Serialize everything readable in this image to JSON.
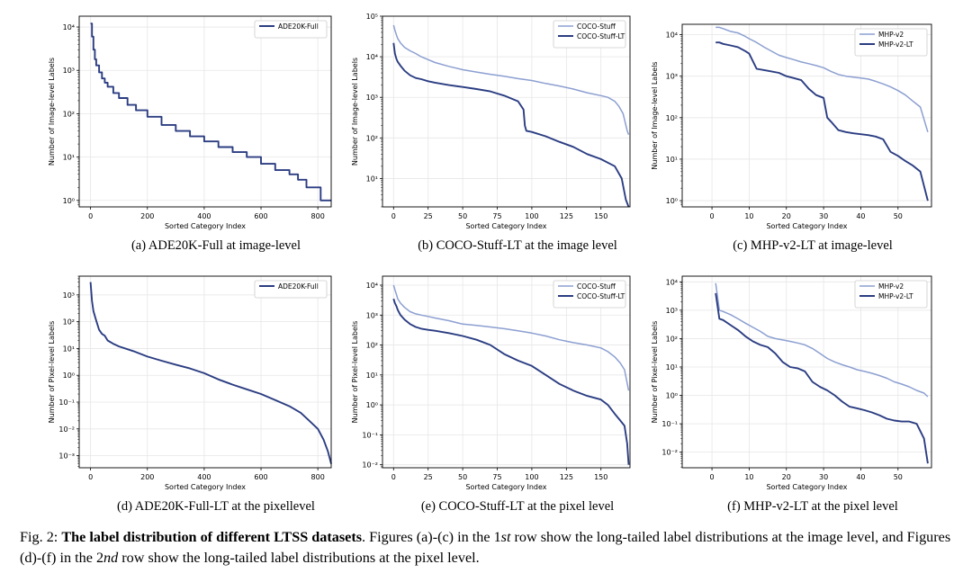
{
  "colors": {
    "light": "#8c9fd1",
    "dark": "#2b3d82",
    "grid": "#e6e6e6",
    "axis": "#000000"
  },
  "chart_data": [
    {
      "id": "a",
      "type": "line",
      "yscale": "log",
      "caption": "(a) ADE20K-Full at image-level",
      "xlabel": "Sorted Category Index",
      "ylabel": "Number of Image-level Labels",
      "xlim": [
        -40,
        847
      ],
      "ylim_exp": [
        -0.15,
        4.25
      ],
      "xticks": [
        0,
        200,
        400,
        600,
        800
      ],
      "yticks_exp": [
        0,
        1,
        2,
        3,
        4
      ],
      "legend": "top-right",
      "grid": true,
      "series": [
        {
          "name": "ADE20K-Full",
          "color": "dark",
          "step": true,
          "x": [
            0,
            5,
            10,
            15,
            20,
            30,
            40,
            50,
            60,
            80,
            100,
            130,
            160,
            200,
            250,
            300,
            350,
            400,
            450,
            500,
            550,
            600,
            650,
            700,
            730,
            760,
            790,
            810,
            847
          ],
          "y": [
            12000,
            6000,
            3000,
            1800,
            1300,
            900,
            650,
            520,
            420,
            300,
            230,
            160,
            120,
            85,
            55,
            40,
            30,
            23,
            17,
            13,
            10,
            7,
            5,
            4,
            3,
            2,
            2,
            1,
            1
          ]
        }
      ]
    },
    {
      "id": "b",
      "type": "line",
      "yscale": "log",
      "caption": "(b) COCO-Stuff-LT at the image level",
      "xlabel": "Sorted Category Index",
      "ylabel": "Number of Image-level Labels",
      "xlim": [
        -8,
        171
      ],
      "ylim_exp": [
        0.3,
        5
      ],
      "xticks": [
        0,
        25,
        50,
        75,
        100,
        125,
        150
      ],
      "yticks_exp": [
        1,
        2,
        3,
        4,
        5
      ],
      "legend": "top-right",
      "grid": true,
      "series": [
        {
          "name": "COCO-Stuff",
          "color": "light",
          "x": [
            0,
            1,
            2,
            3,
            5,
            8,
            12,
            16,
            20,
            25,
            30,
            40,
            50,
            60,
            70,
            80,
            90,
            100,
            110,
            120,
            130,
            140,
            150,
            155,
            160,
            163,
            166,
            169,
            170
          ],
          "y": [
            60000,
            45000,
            35000,
            28000,
            22000,
            17000,
            14000,
            12000,
            10000,
            8500,
            7200,
            5800,
            4800,
            4200,
            3700,
            3300,
            2900,
            2600,
            2200,
            1900,
            1600,
            1300,
            1100,
            1000,
            800,
            600,
            400,
            150,
            120
          ]
        },
        {
          "name": "COCO-Stuff-LT",
          "color": "dark",
          "x": [
            0,
            1,
            2,
            3,
            5,
            8,
            12,
            16,
            20,
            25,
            30,
            40,
            50,
            60,
            70,
            80,
            90,
            94,
            95,
            96,
            100,
            110,
            120,
            130,
            140,
            150,
            160,
            165,
            168,
            170
          ],
          "y": [
            22000,
            12000,
            9000,
            7500,
            6000,
            4500,
            3500,
            3000,
            2800,
            2500,
            2300,
            2000,
            1800,
            1600,
            1400,
            1100,
            800,
            500,
            200,
            150,
            140,
            110,
            80,
            60,
            40,
            30,
            20,
            10,
            3,
            2
          ]
        }
      ]
    },
    {
      "id": "c",
      "type": "line",
      "yscale": "log",
      "caption": "(c) MHP-v2-LT at image-level",
      "xlabel": "Sorted Category Index",
      "ylabel": "Number of Image-level Labels",
      "xlim": [
        -8,
        59
      ],
      "ylim_exp": [
        -0.15,
        4.25
      ],
      "xticks": [
        0,
        10,
        20,
        30,
        40,
        50
      ],
      "yticks_exp": [
        0,
        1,
        2,
        3,
        4
      ],
      "legend": "top-right",
      "grid": true,
      "series": [
        {
          "name": "MHP-v2",
          "color": "light",
          "x": [
            1,
            2,
            3,
            5,
            7,
            9,
            10,
            12,
            14,
            16,
            18,
            20,
            22,
            24,
            26,
            28,
            30,
            32,
            34,
            36,
            38,
            40,
            42,
            44,
            46,
            48,
            50,
            52,
            54,
            56,
            58
          ],
          "y": [
            15000,
            15000,
            14000,
            12000,
            11000,
            9000,
            8000,
            6500,
            5000,
            4000,
            3200,
            2800,
            2500,
            2200,
            2000,
            1800,
            1600,
            1300,
            1100,
            1000,
            950,
            900,
            850,
            750,
            650,
            550,
            450,
            350,
            250,
            180,
            45
          ]
        },
        {
          "name": "MHP-v2-LT",
          "color": "dark",
          "x": [
            1,
            2,
            3,
            5,
            7,
            9,
            10,
            12,
            14,
            16,
            18,
            20,
            22,
            24,
            26,
            28,
            30,
            31,
            32,
            34,
            36,
            38,
            40,
            42,
            44,
            46,
            48,
            50,
            52,
            54,
            56,
            58
          ],
          "y": [
            6500,
            6500,
            6000,
            5500,
            5000,
            4000,
            3500,
            1500,
            1400,
            1300,
            1200,
            1000,
            900,
            800,
            500,
            350,
            300,
            100,
            80,
            50,
            45,
            42,
            40,
            38,
            35,
            30,
            15,
            12,
            9,
            7,
            5,
            1
          ]
        }
      ]
    },
    {
      "id": "d",
      "type": "line",
      "yscale": "log",
      "caption": "(d) ADE20K-Full-LT at the pixellevel",
      "xlabel": "Sorted Category Index",
      "ylabel": "Number of Pixel-level Labels",
      "xlim": [
        -40,
        847
      ],
      "ylim_exp": [
        -3.45,
        3.7
      ],
      "xticks": [
        0,
        200,
        400,
        600,
        800
      ],
      "yticks_exp": [
        -3,
        -2,
        -1,
        0,
        1,
        2,
        3
      ],
      "legend": "top-right",
      "grid": true,
      "series": [
        {
          "name": "ADE20K-Full",
          "color": "dark",
          "x": [
            0,
            5,
            10,
            20,
            30,
            40,
            50,
            60,
            80,
            100,
            150,
            200,
            250,
            300,
            350,
            400,
            450,
            500,
            550,
            600,
            650,
            700,
            740,
            770,
            800,
            820,
            835,
            847
          ],
          "y": [
            3000,
            600,
            250,
            110,
            50,
            35,
            30,
            20,
            15,
            12,
            8,
            5,
            3.5,
            2.5,
            1.8,
            1.2,
            0.7,
            0.45,
            0.3,
            0.2,
            0.12,
            0.07,
            0.04,
            0.02,
            0.01,
            0.004,
            0.0015,
            0.0005
          ]
        }
      ]
    },
    {
      "id": "e",
      "type": "line",
      "yscale": "log",
      "caption": "(e) COCO-Stuff-LT at the pixel level",
      "xlabel": "Sorted Category Index",
      "ylabel": "Number of Pixel-level Labels",
      "xlim": [
        -8,
        171
      ],
      "ylim_exp": [
        -2.1,
        4.3
      ],
      "xticks": [
        0,
        25,
        50,
        75,
        100,
        125,
        150
      ],
      "yticks_exp": [
        -2,
        -1,
        0,
        1,
        2,
        3,
        4
      ],
      "legend": "top-right",
      "grid": true,
      "series": [
        {
          "name": "COCO-Stuff",
          "color": "light",
          "x": [
            0,
            1,
            2,
            3,
            5,
            8,
            12,
            16,
            20,
            25,
            30,
            40,
            50,
            60,
            70,
            80,
            90,
            100,
            110,
            120,
            130,
            140,
            150,
            155,
            160,
            164,
            167,
            170
          ],
          "y": [
            10000,
            7000,
            5000,
            3500,
            2500,
            1800,
            1300,
            1100,
            1000,
            900,
            800,
            650,
            500,
            450,
            400,
            350,
            300,
            250,
            200,
            150,
            120,
            100,
            80,
            60,
            40,
            25,
            15,
            3
          ]
        },
        {
          "name": "COCO-Stuff-LT",
          "color": "dark",
          "x": [
            0,
            1,
            2,
            3,
            5,
            8,
            12,
            16,
            20,
            25,
            30,
            40,
            50,
            60,
            70,
            80,
            90,
            100,
            110,
            120,
            130,
            140,
            150,
            155,
            160,
            164,
            167,
            169,
            170
          ],
          "y": [
            3500,
            2500,
            2000,
            1500,
            1000,
            700,
            500,
            400,
            350,
            320,
            300,
            250,
            200,
            150,
            100,
            50,
            30,
            20,
            10,
            5,
            3,
            2,
            1.5,
            1,
            0.5,
            0.3,
            0.2,
            0.05,
            0.01
          ]
        }
      ]
    },
    {
      "id": "f",
      "type": "line",
      "yscale": "log",
      "caption": "(f) MHP-v2-LT at the pixel level",
      "xlabel": "Sorted Category Index",
      "ylabel": "Number of Pixel-level Labels",
      "xlim": [
        -8,
        59
      ],
      "ylim_exp": [
        -2.55,
        4.2
      ],
      "xticks": [
        0,
        10,
        20,
        30,
        40,
        50
      ],
      "yticks_exp": [
        -2,
        -1,
        0,
        1,
        2,
        3,
        4
      ],
      "legend": "top-right",
      "grid": true,
      "series": [
        {
          "name": "MHP-v2",
          "color": "light",
          "x": [
            1,
            2,
            3,
            5,
            7,
            9,
            11,
            13,
            15,
            17,
            19,
            21,
            23,
            25,
            27,
            29,
            31,
            33,
            35,
            37,
            39,
            41,
            43,
            45,
            47,
            49,
            51,
            53,
            55,
            57,
            58
          ],
          "y": [
            9000,
            1000,
            900,
            700,
            500,
            350,
            250,
            180,
            120,
            100,
            90,
            80,
            70,
            60,
            45,
            30,
            20,
            15,
            12,
            10,
            8,
            7,
            6,
            5,
            4,
            3,
            2.5,
            2,
            1.5,
            1.2,
            0.9
          ]
        },
        {
          "name": "MHP-v2-LT",
          "color": "dark",
          "x": [
            1,
            2,
            3,
            5,
            7,
            9,
            11,
            13,
            15,
            17,
            19,
            21,
            23,
            25,
            27,
            29,
            31,
            33,
            35,
            37,
            39,
            41,
            43,
            45,
            47,
            49,
            51,
            53,
            55,
            57,
            58
          ],
          "y": [
            4000,
            500,
            450,
            300,
            200,
            120,
            80,
            60,
            50,
            30,
            15,
            10,
            9,
            7,
            3,
            2,
            1.5,
            1,
            0.6,
            0.4,
            0.35,
            0.3,
            0.25,
            0.2,
            0.15,
            0.13,
            0.12,
            0.12,
            0.1,
            0.03,
            0.004
          ]
        }
      ]
    }
  ],
  "figure_caption": {
    "prefix": "Fig. 2: ",
    "bold": "The label distribution of different LTSS datasets",
    "part1": ". Figures (a)-(c) in the 1",
    "sup1": "st",
    "part2": " row show the long-tailed label distributions at the image level, and Figures (d)-(f) in the 2",
    "sup2": "nd",
    "part3": " row show the long-tailed label distributions at the pixel level."
  }
}
